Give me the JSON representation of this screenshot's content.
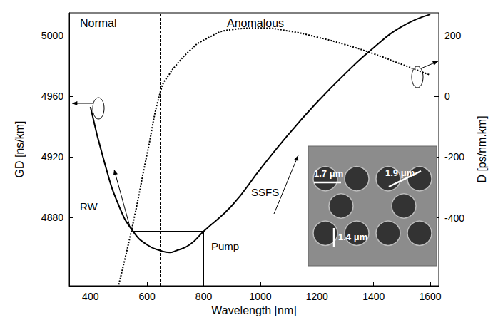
{
  "chart_data": {
    "type": "line",
    "x_label": "Wavelength [nm]",
    "y_label": "GD [ns/km]",
    "y2_label": "D [ps/nm.km]",
    "xlim": [
      325,
      1630
    ],
    "xticks": [
      400,
      600,
      800,
      1000,
      1200,
      1400,
      1600
    ],
    "ylim": [
      4835,
      5015
    ],
    "yticks": [
      4880,
      4920,
      4960,
      5000
    ],
    "y2lim": [
      -624,
      275
    ],
    "y2ticks": [
      -400,
      -200,
      0,
      200
    ],
    "grid": false,
    "x": [
      400,
      450,
      500,
      550,
      600,
      650,
      680,
      700,
      750,
      800,
      900,
      1000,
      1100,
      1200,
      1300,
      1400,
      1500,
      1600
    ],
    "series": [
      {
        "color": "#000000",
        "line_style": "solid",
        "values": [
          4953,
          4916,
          4888,
          4871,
          4862,
          4858,
          4857,
          4858,
          4862,
          4871,
          4888,
          4912,
          4935,
          4956,
          4975,
          4992,
          5006,
          5014
        ]
      },
      {
        "color": "#000000",
        "line_style": "dotted",
        "axis": "y2",
        "values": [
          null,
          null,
          -620,
          -420,
          -190,
          25,
          75,
          100,
          150,
          185,
          220,
          225,
          215,
          195,
          170,
          140,
          105,
          70
        ]
      }
    ],
    "region_labels": [
      "Normal",
      "Anomalous"
    ],
    "arrow_labels": [
      "RW",
      "SSFS"
    ],
    "pump_label": "Pump",
    "pump_x": 800,
    "pump_gd": 4871,
    "dashed_x": 645,
    "inset_labels": [
      "1.7 μm",
      "1.9 μm",
      "1.4 μm"
    ]
  }
}
